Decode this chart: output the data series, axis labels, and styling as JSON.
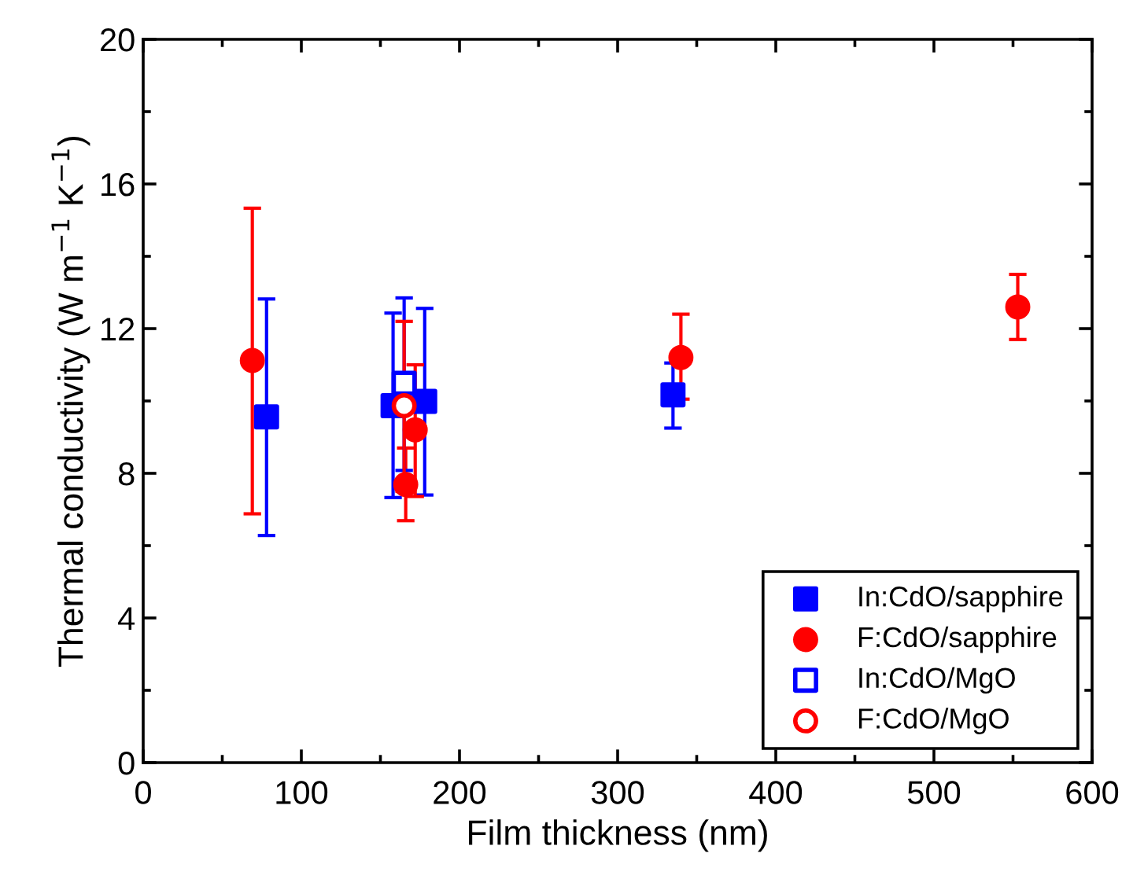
{
  "chart_data": {
    "type": "scatter",
    "xlabel": "Film thickness (nm)",
    "ylabel": "Thermal conductivity (W m$^{−1}$ K$^{−1}$)",
    "xlim": [
      0,
      600
    ],
    "xticks": [
      0,
      100,
      200,
      300,
      400,
      500,
      600
    ],
    "ylim": [
      0,
      20
    ],
    "yticks": [
      0,
      4,
      8,
      12,
      16,
      20
    ],
    "grid": false,
    "legend": "bottom right",
    "series": [
      {
        "name": "In:CdO/sapphire",
        "color": "#0000ff",
        "marker": "square",
        "x": [
          78,
          158,
          178,
          335
        ],
        "values": [
          9.56,
          9.87,
          9.99,
          10.17
        ],
        "errors": [
          [
            6.28,
            12.82
          ],
          [
            7.33,
            12.43
          ],
          [
            7.4,
            12.56
          ],
          [
            9.25,
            11.05
          ]
        ]
      },
      {
        "name": "F:CdO/sapphire",
        "color": "#ff0000",
        "marker": "circle",
        "x": [
          69,
          166,
          172,
          340,
          553
        ],
        "values": [
          11.12,
          7.69,
          9.2,
          11.2,
          12.6
        ],
        "errors": [
          [
            6.88,
            15.33
          ],
          [
            6.69,
            8.7
          ],
          [
            7.36,
            11.0
          ],
          [
            10.05,
            12.4
          ],
          [
            11.7,
            13.5
          ]
        ]
      },
      {
        "name": "In:CdO/MgO",
        "color": "#0000ff",
        "marker": "square",
        "colors": [
          "#ffffff"
        ],
        "x": [
          165
        ],
        "values": [
          10.49
        ],
        "errors": [
          [
            8.08,
            12.85
          ]
        ]
      },
      {
        "name": "F:CdO/MgO",
        "color": "#ff0000",
        "marker": "circle",
        "colors": [
          "#ffffff"
        ],
        "x": [
          165
        ],
        "values": [
          9.87
        ],
        "errors": [
          [
            7.5,
            12.2
          ]
        ]
      }
    ]
  }
}
